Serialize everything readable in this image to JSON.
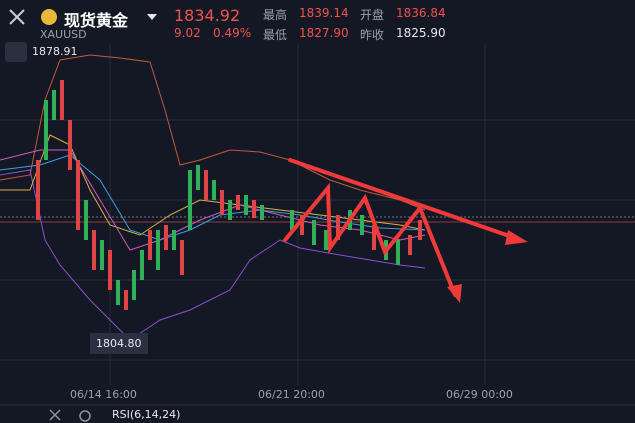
{
  "header": {
    "name": "现货黄金",
    "symbol": "XAUUSD",
    "price": "1834.92",
    "change": "9.02",
    "change_pct": "0.49%",
    "high_label": "最高",
    "high": "1839.14",
    "open_label": "开盘",
    "open": "1836.84",
    "low_label": "最低",
    "low": "1827.90",
    "prev_close_label": "昨收",
    "prev_close": "1825.90"
  },
  "chart": {
    "max_label": "1878.91",
    "min_label": "1804.80",
    "x_labels": [
      "06/14 16:00",
      "06/21 20:00",
      "06/29 00:00"
    ],
    "indicator": "RSI(6,14,24)"
  }
}
